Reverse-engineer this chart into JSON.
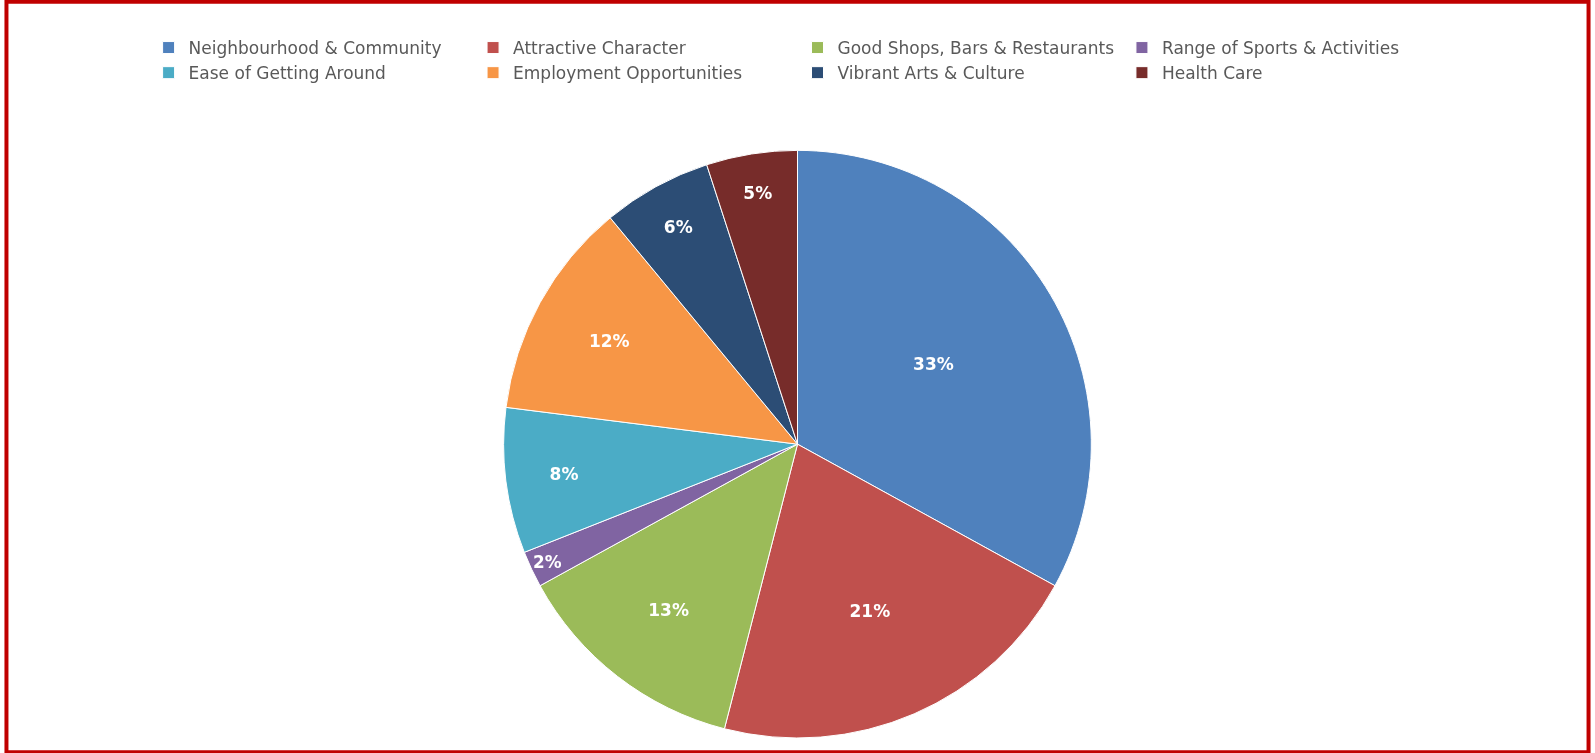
{
  "chart_data": {
    "type": "pie",
    "categories": [
      "Neighbourhood & Community",
      "Attractive Character",
      "Good Shops, Bars & Restaurants",
      "Range of Sports & Activities",
      "Ease of Getting Around",
      "Employment Opportunities",
      "Vibrant Arts & Culture",
      "Health Care"
    ],
    "values": [
      33,
      21,
      13,
      2,
      8,
      12,
      6,
      5
    ],
    "colors": [
      "#4f81bd",
      "#c0504d",
      "#9bbb59",
      "#8064a2",
      "#4bacc6",
      "#f79646",
      "#2c4d75",
      "#772c2a"
    ],
    "value_labels": [
      "33%",
      "21%",
      "13%",
      "2%",
      "8%",
      "12%",
      "6%",
      "5%"
    ],
    "legend": "top"
  }
}
